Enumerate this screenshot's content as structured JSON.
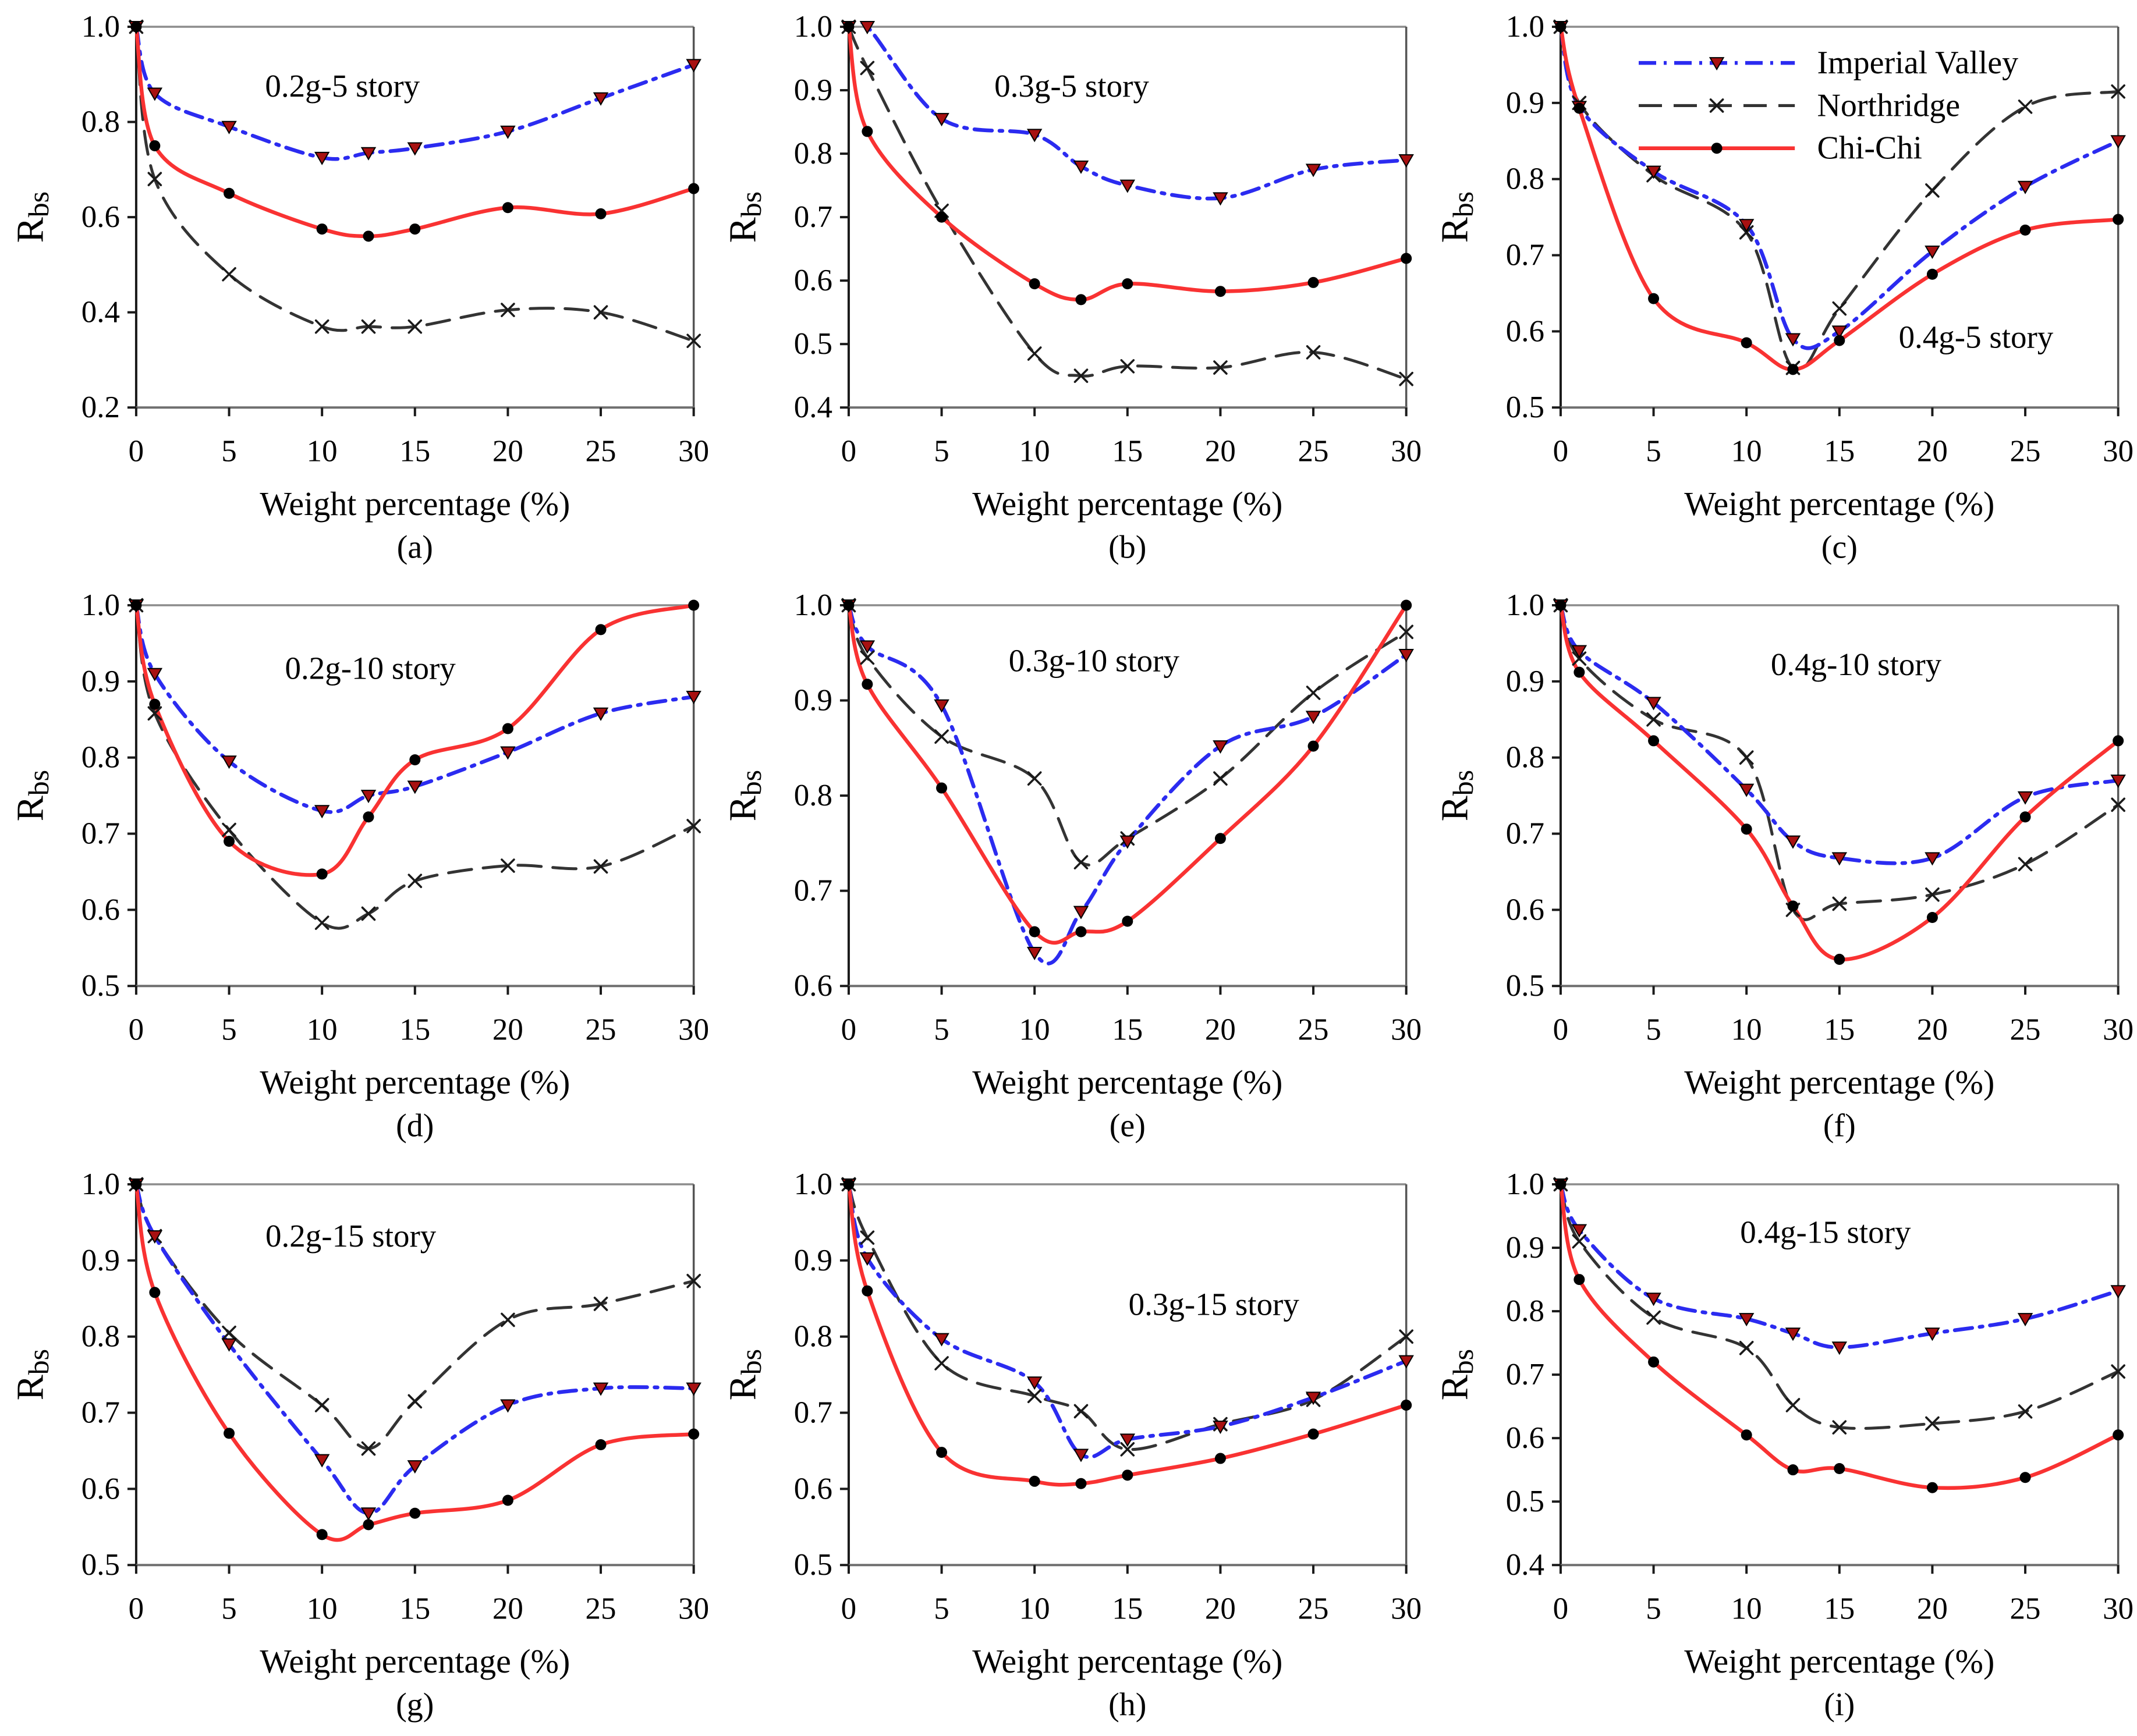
{
  "figure": {
    "x_axis_label": "Weight percentage (%)",
    "y_axis_label_base": "R",
    "y_axis_label_sub": "bs",
    "colors": {
      "imperial_valley_line": "#2b2bf0",
      "northridge_line": "#333333",
      "chichi_line": "#f93232",
      "triangle_marker_fill": "#a81111",
      "marker_black": "#111111",
      "axis_dark": "#1a1a1a",
      "frame_gray": "#8c8c8c",
      "background": "#ffffff"
    },
    "series_styles": [
      {
        "name": "Imperial Valley",
        "line_color": "#2b2bf0",
        "line_style": "dash-dot",
        "dasharray": "30 13 5 13",
        "line_width": 6.5,
        "marker": "triangle-down",
        "marker_color": "#a81111"
      },
      {
        "name": "Northridge",
        "line_color": "#333333",
        "line_style": "dashed",
        "dasharray": "40 20",
        "line_width": 5,
        "marker": "x",
        "marker_color": "#1a1a1a"
      },
      {
        "name": "Chi-Chi",
        "line_color": "#f93232",
        "line_style": "solid",
        "dasharray": "",
        "line_width": 6.5,
        "marker": "circle",
        "marker_color": "#000000"
      }
    ],
    "draw_order": [
      "Northridge",
      "Imperial Valley",
      "Chi-Chi"
    ],
    "legend": {
      "host_panel": "c",
      "entries": [
        "Imperial Valley",
        "Northridge",
        "Chi-Chi"
      ]
    }
  },
  "chart_data": [
    {
      "id": "a",
      "type": "line",
      "caption": "(a)",
      "annotation": "0.2g-5 story",
      "annotation_pos": {
        "fx": 0.37,
        "fy": 0.155
      },
      "xlabel": "Weight percentage (%)",
      "ylabel": "Rbs",
      "x": [
        0,
        1,
        5,
        10,
        12.5,
        15,
        20,
        25,
        30
      ],
      "x_ticks": [
        0,
        5,
        10,
        15,
        20,
        25,
        30
      ],
      "xlim": [
        0,
        30
      ],
      "ylim": [
        0.2,
        1.0
      ],
      "y_ticks": [
        0.2,
        0.4,
        0.6,
        0.8,
        1.0
      ],
      "legend": false,
      "series": [
        {
          "name": "Imperial Valley",
          "values": [
            1.0,
            0.86,
            0.79,
            0.725,
            0.735,
            0.745,
            0.78,
            0.85,
            0.92
          ]
        },
        {
          "name": "Northridge",
          "values": [
            1.0,
            0.68,
            0.48,
            0.37,
            0.37,
            0.37,
            0.405,
            0.4,
            0.34
          ]
        },
        {
          "name": "Chi-Chi",
          "values": [
            1.0,
            0.75,
            0.65,
            0.575,
            0.56,
            0.575,
            0.62,
            0.607,
            0.66
          ]
        }
      ]
    },
    {
      "id": "b",
      "type": "line",
      "caption": "(b)",
      "annotation": "0.3g-5 story",
      "annotation_pos": {
        "fx": 0.4,
        "fy": 0.155
      },
      "xlabel": "Weight percentage (%)",
      "ylabel": "Rbs",
      "x": [
        0,
        1,
        5,
        10,
        12.5,
        15,
        20,
        25,
        30
      ],
      "x_ticks": [
        0,
        5,
        10,
        15,
        20,
        25,
        30
      ],
      "xlim": [
        0,
        30
      ],
      "ylim": [
        0.4,
        1.0
      ],
      "y_ticks": [
        0.4,
        0.5,
        0.6,
        0.7,
        0.8,
        0.9,
        1.0
      ],
      "legend": false,
      "series": [
        {
          "name": "Imperial Valley",
          "values": [
            1.0,
            1.0,
            0.855,
            0.83,
            0.78,
            0.75,
            0.73,
            0.775,
            0.79
          ]
        },
        {
          "name": "Northridge",
          "values": [
            1.0,
            0.935,
            0.71,
            0.485,
            0.45,
            0.465,
            0.463,
            0.487,
            0.445
          ]
        },
        {
          "name": "Chi-Chi",
          "values": [
            1.0,
            0.835,
            0.7,
            0.595,
            0.57,
            0.595,
            0.583,
            0.597,
            0.635
          ]
        }
      ]
    },
    {
      "id": "c",
      "type": "line",
      "caption": "(c)",
      "annotation": "0.4g-5 story",
      "annotation_pos": {
        "fx": 0.745,
        "fy": 0.815
      },
      "xlabel": "Weight percentage (%)",
      "ylabel": "Rbs",
      "x": [
        0,
        1,
        5,
        10,
        12.5,
        15,
        20,
        25,
        30
      ],
      "x_ticks": [
        0,
        5,
        10,
        15,
        20,
        25,
        30
      ],
      "xlim": [
        0,
        30
      ],
      "ylim": [
        0.5,
        1.0
      ],
      "y_ticks": [
        0.5,
        0.6,
        0.7,
        0.8,
        0.9,
        1.0
      ],
      "legend": true,
      "series": [
        {
          "name": "Imperial Valley",
          "values": [
            1.0,
            0.895,
            0.81,
            0.74,
            0.59,
            0.6,
            0.705,
            0.79,
            0.85
          ]
        },
        {
          "name": "Northridge",
          "values": [
            1.0,
            0.9,
            0.805,
            0.73,
            0.552,
            0.63,
            0.785,
            0.895,
            0.915
          ]
        },
        {
          "name": "Chi-Chi",
          "values": [
            1.0,
            0.893,
            0.643,
            0.585,
            0.55,
            0.588,
            0.675,
            0.733,
            0.747
          ]
        }
      ]
    },
    {
      "id": "d",
      "type": "line",
      "caption": "(d)",
      "annotation": "0.2g-10 story",
      "annotation_pos": {
        "fx": 0.42,
        "fy": 0.165
      },
      "xlabel": "Weight percentage (%)",
      "ylabel": "Rbs",
      "x": [
        0,
        1,
        5,
        10,
        12.5,
        15,
        20,
        25,
        30
      ],
      "x_ticks": [
        0,
        5,
        10,
        15,
        20,
        25,
        30
      ],
      "xlim": [
        0,
        30
      ],
      "ylim": [
        0.5,
        1.0
      ],
      "y_ticks": [
        0.5,
        0.6,
        0.7,
        0.8,
        0.9,
        1.0
      ],
      "legend": false,
      "series": [
        {
          "name": "Imperial Valley",
          "values": [
            1.0,
            0.91,
            0.795,
            0.73,
            0.75,
            0.762,
            0.807,
            0.858,
            0.88
          ]
        },
        {
          "name": "Northridge",
          "values": [
            1.0,
            0.858,
            0.705,
            0.583,
            0.595,
            0.638,
            0.658,
            0.657,
            0.71
          ]
        },
        {
          "name": "Chi-Chi",
          "values": [
            1.0,
            0.87,
            0.69,
            0.647,
            0.722,
            0.797,
            0.838,
            0.968,
            1.0
          ]
        }
      ]
    },
    {
      "id": "e",
      "type": "line",
      "caption": "(e)",
      "annotation": "0.3g-10 story",
      "annotation_pos": {
        "fx": 0.44,
        "fy": 0.145
      },
      "xlabel": "Weight percentage (%)",
      "ylabel": "Rbs",
      "x": [
        0,
        1,
        5,
        10,
        12.5,
        15,
        20,
        25,
        30
      ],
      "x_ticks": [
        0,
        5,
        10,
        15,
        20,
        25,
        30
      ],
      "xlim": [
        0,
        30
      ],
      "ylim": [
        0.6,
        1.0
      ],
      "y_ticks": [
        0.6,
        0.7,
        0.8,
        0.9,
        1.0
      ],
      "legend": false,
      "series": [
        {
          "name": "Imperial Valley",
          "values": [
            1.0,
            0.957,
            0.895,
            0.635,
            0.678,
            0.752,
            0.852,
            0.883,
            0.948
          ]
        },
        {
          "name": "Northridge",
          "values": [
            1.0,
            0.945,
            0.862,
            0.818,
            0.73,
            0.755,
            0.818,
            0.908,
            0.972
          ]
        },
        {
          "name": "Chi-Chi",
          "values": [
            1.0,
            0.917,
            0.808,
            0.657,
            0.657,
            0.668,
            0.755,
            0.852,
            1.0
          ]
        }
      ]
    },
    {
      "id": "f",
      "type": "line",
      "caption": "(f)",
      "annotation": "0.4g-10 story",
      "annotation_pos": {
        "fx": 0.53,
        "fy": 0.155
      },
      "xlabel": "Weight percentage (%)",
      "ylabel": "Rbs",
      "x": [
        0,
        1,
        5,
        10,
        12.5,
        15,
        20,
        25,
        30
      ],
      "x_ticks": [
        0,
        5,
        10,
        15,
        20,
        25,
        30
      ],
      "xlim": [
        0,
        30
      ],
      "ylim": [
        0.5,
        1.0
      ],
      "y_ticks": [
        0.5,
        0.6,
        0.7,
        0.8,
        0.9,
        1.0
      ],
      "legend": false,
      "series": [
        {
          "name": "Imperial Valley",
          "values": [
            1.0,
            0.94,
            0.872,
            0.758,
            0.69,
            0.668,
            0.668,
            0.748,
            0.77
          ]
        },
        {
          "name": "Northridge",
          "values": [
            1.0,
            0.93,
            0.85,
            0.8,
            0.6,
            0.608,
            0.62,
            0.66,
            0.738
          ]
        },
        {
          "name": "Chi-Chi",
          "values": [
            1.0,
            0.912,
            0.822,
            0.706,
            0.605,
            0.535,
            0.59,
            0.722,
            0.822
          ]
        }
      ]
    },
    {
      "id": "g",
      "type": "line",
      "caption": "(g)",
      "annotation": "0.2g-15 story",
      "annotation_pos": {
        "fx": 0.385,
        "fy": 0.135
      },
      "xlabel": "Weight percentage (%)",
      "ylabel": "Rbs",
      "x": [
        0,
        1,
        5,
        10,
        12.5,
        15,
        20,
        25,
        30
      ],
      "x_ticks": [
        0,
        5,
        10,
        15,
        20,
        25,
        30
      ],
      "xlim": [
        0,
        30
      ],
      "ylim": [
        0.5,
        1.0
      ],
      "y_ticks": [
        0.5,
        0.6,
        0.7,
        0.8,
        0.9,
        1.0
      ],
      "legend": false,
      "series": [
        {
          "name": "Imperial Valley",
          "values": [
            1.0,
            0.932,
            0.79,
            0.638,
            0.568,
            0.63,
            0.71,
            0.732,
            0.732
          ]
        },
        {
          "name": "Northridge",
          "values": [
            1.0,
            0.932,
            0.805,
            0.71,
            0.653,
            0.715,
            0.822,
            0.843,
            0.873
          ]
        },
        {
          "name": "Chi-Chi",
          "values": [
            1.0,
            0.858,
            0.673,
            0.54,
            0.553,
            0.568,
            0.585,
            0.658,
            0.672
          ]
        }
      ]
    },
    {
      "id": "h",
      "type": "line",
      "caption": "(h)",
      "annotation": "0.3g-15 story",
      "annotation_pos": {
        "fx": 0.655,
        "fy": 0.315
      },
      "xlabel": "Weight percentage (%)",
      "ylabel": "Rbs",
      "x": [
        0,
        1,
        5,
        10,
        12.5,
        15,
        20,
        25,
        30
      ],
      "x_ticks": [
        0,
        5,
        10,
        15,
        20,
        25,
        30
      ],
      "xlim": [
        0,
        30
      ],
      "ylim": [
        0.5,
        1.0
      ],
      "y_ticks": [
        0.5,
        0.6,
        0.7,
        0.8,
        0.9,
        1.0
      ],
      "legend": false,
      "series": [
        {
          "name": "Imperial Valley",
          "values": [
            1.0,
            0.903,
            0.797,
            0.74,
            0.645,
            0.665,
            0.682,
            0.72,
            0.768
          ]
        },
        {
          "name": "Northridge",
          "values": [
            1.0,
            0.93,
            0.765,
            0.722,
            0.702,
            0.652,
            0.685,
            0.717,
            0.8
          ]
        },
        {
          "name": "Chi-Chi",
          "values": [
            1.0,
            0.86,
            0.648,
            0.61,
            0.607,
            0.618,
            0.64,
            0.672,
            0.71
          ]
        }
      ]
    },
    {
      "id": "i",
      "type": "line",
      "caption": "(i)",
      "annotation": "0.4g-15 story",
      "annotation_pos": {
        "fx": 0.475,
        "fy": 0.125
      },
      "xlabel": "Weight percentage (%)",
      "ylabel": "Rbs",
      "x": [
        0,
        1,
        5,
        10,
        12.5,
        15,
        20,
        25,
        30
      ],
      "x_ticks": [
        0,
        5,
        10,
        15,
        20,
        25,
        30
      ],
      "xlim": [
        0,
        30
      ],
      "ylim": [
        0.4,
        1.0
      ],
      "y_ticks": [
        0.4,
        0.5,
        0.6,
        0.7,
        0.8,
        0.9,
        1.0
      ],
      "legend": false,
      "series": [
        {
          "name": "Imperial Valley",
          "values": [
            1.0,
            0.928,
            0.82,
            0.788,
            0.765,
            0.743,
            0.765,
            0.788,
            0.832
          ]
        },
        {
          "name": "Northridge",
          "values": [
            1.0,
            0.91,
            0.79,
            0.742,
            0.652,
            0.617,
            0.623,
            0.642,
            0.705
          ]
        },
        {
          "name": "Chi-Chi",
          "values": [
            1.0,
            0.85,
            0.72,
            0.605,
            0.55,
            0.552,
            0.522,
            0.538,
            0.605
          ]
        }
      ]
    }
  ]
}
